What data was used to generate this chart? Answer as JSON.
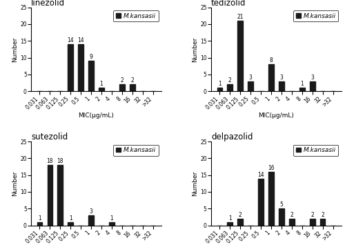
{
  "subplots": [
    {
      "title": "linezolid",
      "categories": [
        "0.031",
        "0.063",
        "0.125",
        "0.25",
        "0.5",
        "1",
        "2",
        "4",
        "8",
        "16",
        "32",
        ">32"
      ],
      "values": [
        0,
        0,
        0,
        14,
        14,
        9,
        1,
        0,
        2,
        2,
        0,
        0
      ],
      "ylim": [
        0,
        25
      ],
      "yticks": [
        0,
        5,
        10,
        15,
        20,
        25
      ]
    },
    {
      "title": "tedizolid",
      "categories": [
        "0.031",
        "0.063",
        "0.125",
        "0.25",
        "0.5",
        "1",
        "2",
        "4",
        "8",
        "16",
        "32",
        ">32"
      ],
      "values": [
        1,
        2,
        21,
        3,
        0,
        8,
        3,
        0,
        1,
        3,
        0,
        0
      ],
      "ylim": [
        0,
        25
      ],
      "yticks": [
        0,
        5,
        10,
        15,
        20,
        25
      ]
    },
    {
      "title": "sutezolid",
      "categories": [
        "0.031",
        "0.063",
        "0.125",
        "0.25",
        "0.5",
        "1",
        "2",
        "4",
        "8",
        "16",
        "32",
        ">32"
      ],
      "values": [
        1,
        18,
        18,
        1,
        0,
        3,
        0,
        1,
        0,
        0,
        0,
        0
      ],
      "ylim": [
        0,
        25
      ],
      "yticks": [
        0,
        5,
        10,
        15,
        20,
        25
      ]
    },
    {
      "title": "delpazolid",
      "categories": [
        "0.031",
        "0.063",
        "0.125",
        "0.25",
        "0.5",
        "1",
        "2",
        "4",
        "8",
        "16",
        "32",
        ">32"
      ],
      "values": [
        0,
        1,
        2,
        0,
        14,
        16,
        5,
        2,
        0,
        2,
        2,
        0
      ],
      "ylim": [
        0,
        25
      ],
      "yticks": [
        0,
        5,
        10,
        15,
        20,
        25
      ]
    }
  ],
  "bar_color": "#1a1a1a",
  "xlabel": "MIC(μg/mL)",
  "ylabel": "Number",
  "legend_label": "M.kansasii",
  "label_fontsize": 6.5,
  "title_fontsize": 8.5,
  "tick_fontsize": 5.5,
  "annotation_fontsize": 5.5,
  "bar_width": 0.5
}
